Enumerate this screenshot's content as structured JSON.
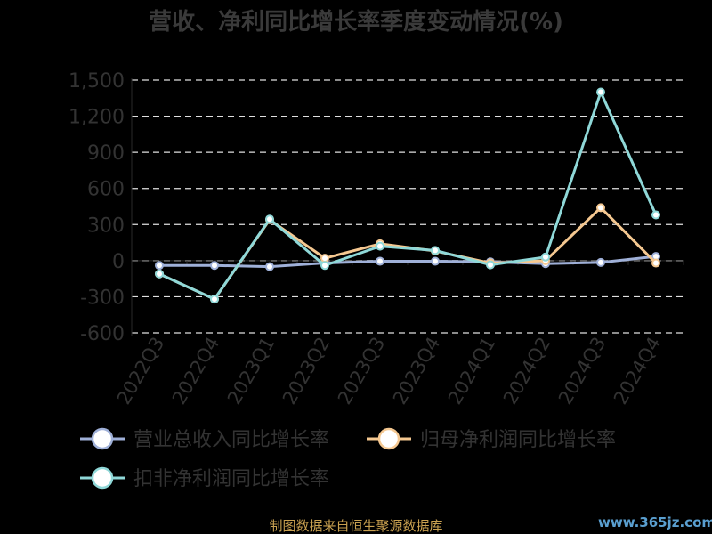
{
  "chart_data": {
    "type": "line",
    "title": "营收、净利同比增长率季度变动情况(%)",
    "categories": [
      "2022Q3",
      "2022Q4",
      "2023Q1",
      "2023Q2",
      "2023Q3",
      "2023Q4",
      "2024Q1",
      "2024Q2",
      "2024Q3",
      "2024Q4"
    ],
    "y_ticks": [
      "1,500",
      "1,200",
      "900",
      "600",
      "300",
      "0",
      "-300",
      "-600"
    ],
    "ylim": [
      -600,
      1500
    ],
    "grid": true,
    "legend_position": "bottom",
    "series": [
      {
        "name": "营业总收入同比增长率",
        "color": "#9fb0d8",
        "values": [
          -40,
          -40,
          -50,
          -20,
          -5,
          -5,
          -10,
          -25,
          -15,
          35
        ]
      },
      {
        "name": "归母净利润同比增长率",
        "color": "#f5c891",
        "values": [
          -110,
          -320,
          340,
          20,
          140,
          80,
          -20,
          0,
          440,
          -20
        ]
      },
      {
        "name": "扣非净利润同比增长率",
        "color": "#8fd8d8",
        "values": [
          -110,
          -320,
          345,
          -40,
          120,
          85,
          -35,
          30,
          1400,
          380
        ]
      }
    ]
  },
  "source_text": "制图数据来自恒生聚源数据库",
  "watermark_text": "www.365jz.com"
}
